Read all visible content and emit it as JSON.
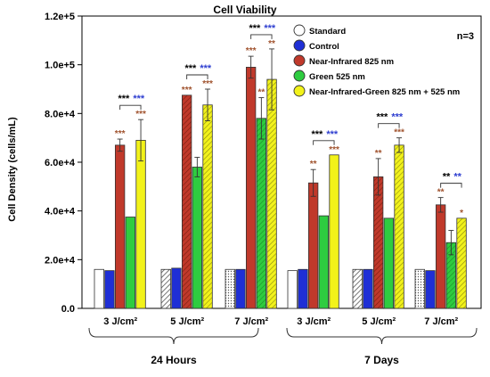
{
  "chart_data": {
    "type": "bar",
    "title": "Cell Viability",
    "ylabel": "Cell Density (cells/mL)",
    "ylim": [
      0,
      120000
    ],
    "yticks": [
      0,
      20000,
      40000,
      60000,
      80000,
      100000,
      120000
    ],
    "ytick_labels": [
      "0.0",
      "2.0e+4",
      "4.0e+4",
      "6.0e+4",
      "8.0e+4",
      "1.0e+5",
      "1.2e+5"
    ],
    "annotation_n": "n=3",
    "categories": [
      "3 J/cm²",
      "5 J/cm²",
      "7 J/cm²",
      "3 J/cm²",
      "5 J/cm²",
      "7 J/cm²"
    ],
    "groups": [
      {
        "label": "24 Hours",
        "categories": [
          0,
          1,
          2
        ]
      },
      {
        "label": "7 Days",
        "categories": [
          3,
          4,
          5
        ]
      }
    ],
    "series": [
      {
        "name": "Standard",
        "color": "#ffffff",
        "pattern": "none",
        "values": [
          16000,
          16000,
          16000,
          15500,
          16000,
          16000
        ],
        "errors": [
          0,
          0,
          0,
          0,
          0,
          0
        ]
      },
      {
        "name": "Control",
        "color": "#1f2fd6",
        "pattern": "none",
        "values": [
          15500,
          16500,
          16000,
          16000,
          16000,
          15500
        ],
        "errors": [
          0,
          0,
          0,
          0,
          0,
          0
        ]
      },
      {
        "name": "Near-Infrared 825 nm",
        "color": "#c0392b",
        "pattern": "none",
        "values": [
          67000,
          87500,
          99000,
          51500,
          54000,
          42500
        ],
        "errors": [
          2500,
          0,
          4500,
          5500,
          7500,
          3000
        ]
      },
      {
        "name": "Green 525 nm",
        "color": "#2ecc40",
        "pattern": "none",
        "values": [
          37500,
          58000,
          78000,
          38000,
          37000,
          27000
        ],
        "errors": [
          0,
          4000,
          8500,
          0,
          0,
          5000
        ]
      },
      {
        "name": "Near-Infrared-Green 825 nm + 525 nm",
        "color": "#f2f21a",
        "pattern": "none",
        "values": [
          69000,
          83500,
          94000,
          63000,
          67000,
          37000
        ],
        "errors": [
          8500,
          6500,
          12500,
          0,
          3000,
          0
        ]
      }
    ],
    "stars": [
      {
        "category": 0,
        "series": 2,
        "text": "***"
      },
      {
        "category": 0,
        "series": 4,
        "text": "***"
      },
      {
        "category": 1,
        "series": 2,
        "text": "***"
      },
      {
        "category": 1,
        "series": 4,
        "text": "***"
      },
      {
        "category": 2,
        "series": 2,
        "text": "***"
      },
      {
        "category": 2,
        "series": 3,
        "text": "**"
      },
      {
        "category": 2,
        "series": 4,
        "text": "**"
      },
      {
        "category": 3,
        "series": 2,
        "text": "**"
      },
      {
        "category": 3,
        "series": 4,
        "text": "***"
      },
      {
        "category": 4,
        "series": 2,
        "text": "**"
      },
      {
        "category": 4,
        "series": 4,
        "text": "***"
      },
      {
        "category": 5,
        "series": 2,
        "text": "**"
      },
      {
        "category": 5,
        "series": 4,
        "text": "*"
      }
    ],
    "brackets": [
      {
        "category": 0,
        "black": "***",
        "blue": "***"
      },
      {
        "category": 1,
        "black": "***",
        "blue": "***"
      },
      {
        "category": 2,
        "black": "***",
        "blue": "***"
      },
      {
        "category": 3,
        "black": "***",
        "blue": "***"
      },
      {
        "category": 4,
        "black": "***",
        "blue": "***"
      },
      {
        "category": 5,
        "black": "**",
        "blue": "**"
      }
    ],
    "colors": {
      "star": "#a0522d",
      "black_sig": "#000000",
      "blue_sig": "#2f3fd0"
    }
  }
}
